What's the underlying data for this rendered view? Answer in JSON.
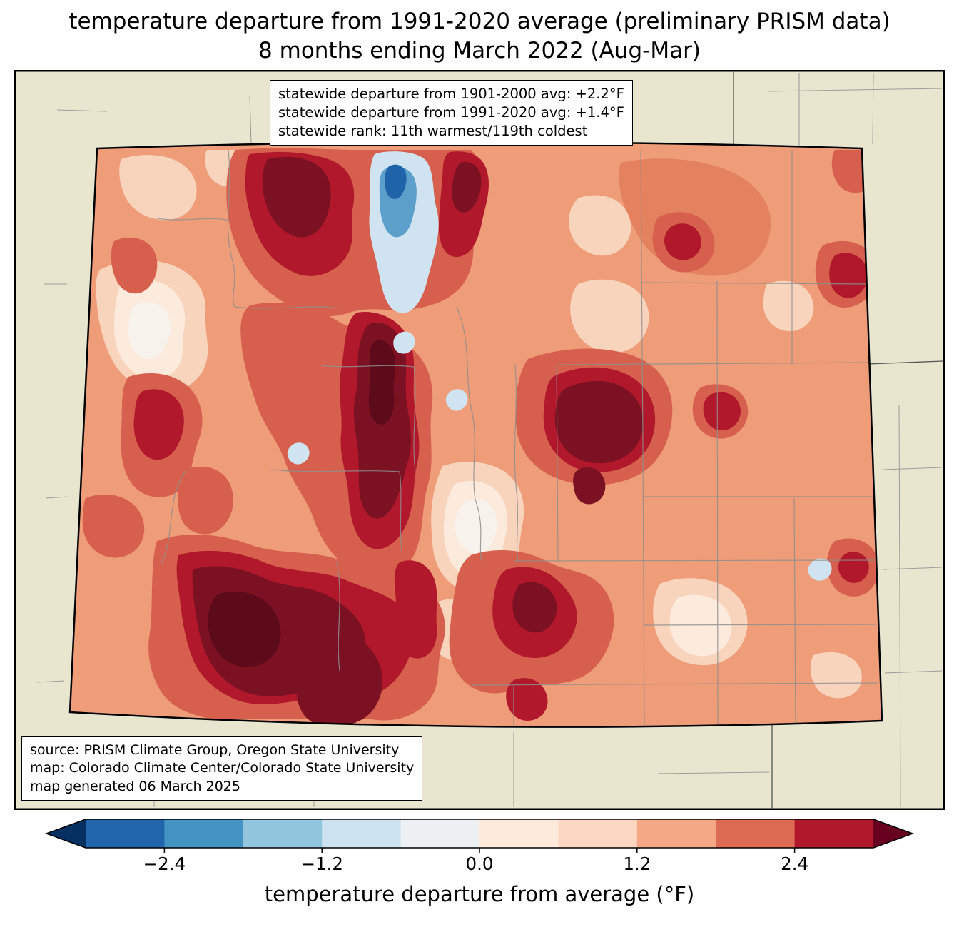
{
  "title": {
    "line1": "temperature departure from 1991-2020 average (preliminary PRISM data)",
    "line2": "8 months ending March 2022 (Aug-Mar)"
  },
  "stats_box": {
    "line1": "statewide departure from 1901-2000 avg: +2.2°F",
    "line2": "statewide departure from 1991-2020 avg: +1.4°F",
    "line3": "statewide rank: 11th warmest/119th coldest"
  },
  "source_box": {
    "line1": "source: PRISM Climate Group, Oregon State University",
    "line2": "map: Colorado Climate Center/Colorado State University",
    "line3": "map generated 06 March 2025"
  },
  "colorbar": {
    "label": "temperature departure from average (°F)",
    "ticks": [
      {
        "label": "−2.4",
        "pos": 0.1
      },
      {
        "label": "−1.2",
        "pos": 0.3
      },
      {
        "label": "0.0",
        "pos": 0.5
      },
      {
        "label": "1.2",
        "pos": 0.7
      },
      {
        "label": "2.4",
        "pos": 0.9
      }
    ],
    "segments": [
      "#2166ac",
      "#4393c3",
      "#92c5de",
      "#cde2ef",
      "#edf1f3",
      "#fdeadb",
      "#fcd7c2",
      "#f5a885",
      "#dd6a52",
      "#b2182b"
    ],
    "left_arrow": "#053061",
    "right_arrow": "#67001f"
  },
  "palette": {
    "background_beige": "#e9e6d0",
    "base_salmon": "#ef9c78",
    "salmon_dark": "#e4815f",
    "light_pink": "#f8d4bd",
    "pale_pink": "#fceadd",
    "near_white": "#f7f2ec",
    "med_red": "#d6604d",
    "dark_red": "#b2182b",
    "maroon": "#7c1123",
    "darkest_red": "#5d0a1b",
    "light_blue": "#cfe3f0",
    "med_blue": "#5b9fca",
    "dark_blue": "#1f63a8",
    "county_line": "#8f8f8f",
    "neighbor_line": "#555555",
    "state_line": "#000000"
  }
}
